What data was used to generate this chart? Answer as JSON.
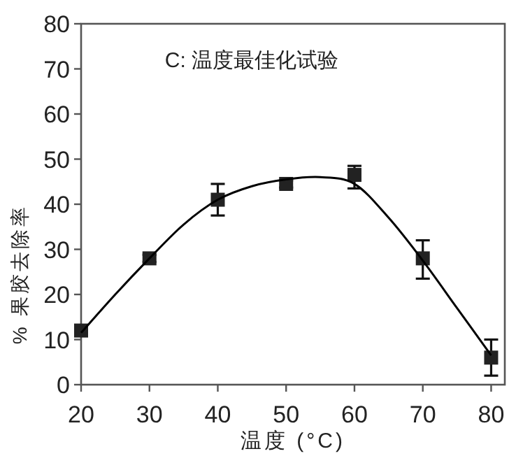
{
  "chart_data": {
    "type": "scatter",
    "title": "C: 温度最佳化试验",
    "xlabel": "温度 (°C)",
    "ylabel": "% 果胶去除率",
    "x": [
      20,
      30,
      40,
      50,
      60,
      70,
      80
    ],
    "series": [
      {
        "type": "scatter",
        "color": "#222222",
        "marker": "square",
        "values": [
          12,
          28,
          41,
          44.5,
          46.5,
          28,
          6
        ],
        "errors": [
          1,
          0.8,
          [
            37.5,
            44.5
          ],
          0.8,
          [
            43.5,
            48.5
          ],
          [
            23.5,
            32
          ],
          [
            2,
            10
          ]
        ]
      },
      {
        "type": "line",
        "color": "#000000",
        "marker": "none",
        "x": [
          20,
          25,
          30,
          35,
          40,
          45,
          50,
          55,
          60,
          65,
          70,
          75,
          80
        ],
        "values": [
          11.5,
          20,
          28,
          35.5,
          41,
          44,
          45.5,
          46,
          44.5,
          37,
          27.5,
          17,
          6.5
        ]
      }
    ],
    "xlim": [
      20,
      82
    ],
    "ylim": [
      0,
      80
    ],
    "xticks": [
      20,
      30,
      40,
      50,
      60,
      70,
      80
    ],
    "yticks": [
      0,
      10,
      20,
      30,
      40,
      50,
      60,
      70,
      80
    ],
    "grid": false
  }
}
